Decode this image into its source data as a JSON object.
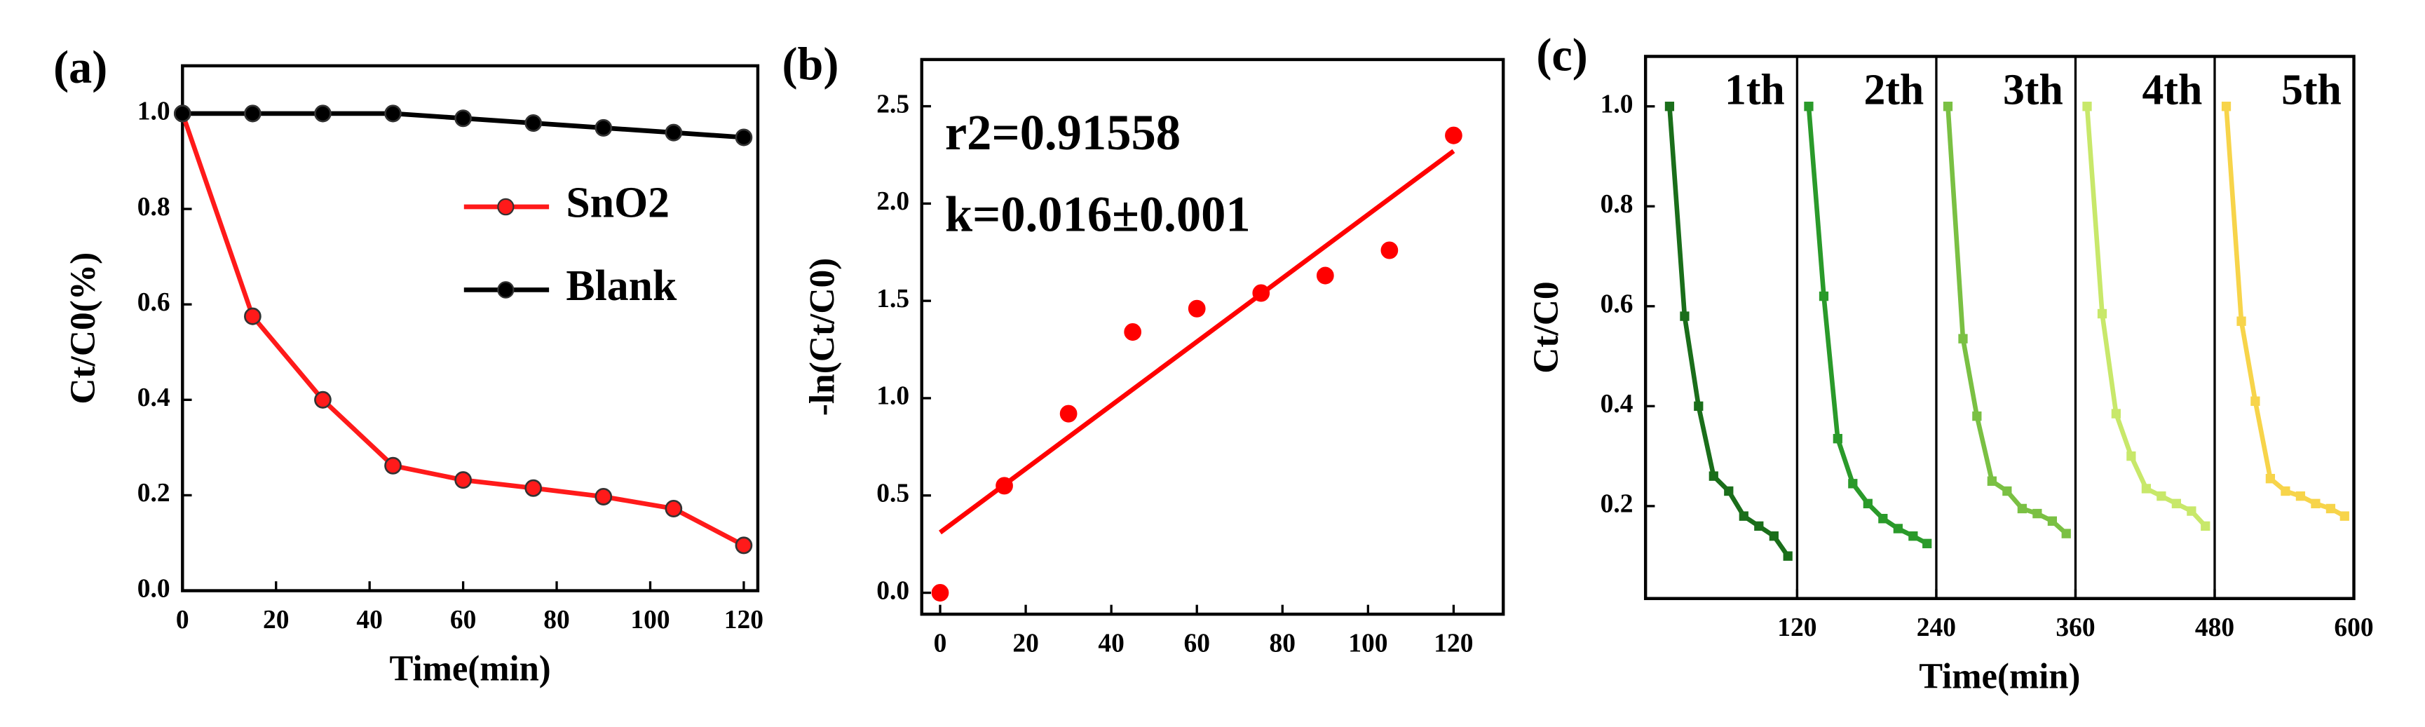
{
  "chart_data": [
    {
      "type": "line",
      "panel": "(a)",
      "xlabel": "Time(min)",
      "ylabel": "Ct/C0(%)",
      "x": [
        0,
        15,
        30,
        45,
        60,
        75,
        90,
        105,
        120
      ],
      "series": [
        {
          "name": "SnO2",
          "color": "#ff1a1a",
          "marker": "circle",
          "line": true,
          "values": [
            1.0,
            0.575,
            0.4,
            0.262,
            0.232,
            0.215,
            0.197,
            0.172,
            0.095
          ]
        },
        {
          "name": "Blank",
          "color": "#000000",
          "marker": "circle",
          "line": true,
          "values": [
            1.0,
            1.0,
            1.0,
            1.0,
            0.99,
            0.98,
            0.97,
            0.96,
            0.95
          ]
        }
      ],
      "xlim": [
        0,
        123
      ],
      "xticks": [
        0,
        20,
        40,
        60,
        80,
        100,
        120
      ],
      "ylim": [
        0,
        1.1
      ],
      "yticks": [
        {
          "value": 0,
          "label": "0.0"
        },
        0.2,
        0.4,
        0.6,
        0.8,
        {
          "value": 1,
          "label": "1.0"
        }
      ],
      "legend": "right"
    },
    {
      "type": "scatter",
      "panel": "(b)",
      "ylabel": "-ln(Ct/C0)",
      "x": [
        0,
        15,
        30,
        45,
        60,
        75,
        90,
        105,
        120
      ],
      "series": [
        {
          "color": "#ff0000",
          "marker": "circle",
          "line": false,
          "values": [
            0,
            0.55,
            0.92,
            1.34,
            1.46,
            1.54,
            1.63,
            1.76,
            2.35
          ]
        },
        {
          "color": "#ff0000",
          "line": true,
          "x": [
            0,
            120
          ],
          "values": [
            0.31,
            2.27
          ]
        }
      ],
      "annotations": [
        "r2=0.91558",
        "k=0.016±0.001"
      ],
      "xlim": [
        -4.3,
        131.6
      ],
      "xticks": [
        0,
        20,
        40,
        60,
        80,
        100,
        120
      ],
      "ylim": [
        -0.11,
        2.74
      ],
      "yticks": [
        {
          "value": 0,
          "label": "0.0"
        },
        0.5,
        {
          "value": 1,
          "label": "1.0"
        },
        1.5,
        {
          "value": 2,
          "label": "2.0"
        },
        2.5
      ]
    },
    {
      "type": "line",
      "panel": "(c)",
      "xlabel": "Time(min)",
      "ylabel": "Ct/C0",
      "series": [
        {
          "color": "#1a6e1a",
          "marker": "square",
          "line": true,
          "x": [
            10,
            23,
            35,
            48,
            61,
            74,
            87,
            100,
            112
          ],
          "values": [
            1.0,
            0.58,
            0.4,
            0.26,
            0.23,
            0.18,
            0.16,
            0.14,
            0.1
          ]
        },
        {
          "color": "#2a9a2a",
          "marker": "square",
          "line": true,
          "x": [
            130,
            143,
            155,
            168,
            181,
            194,
            207,
            220,
            232
          ],
          "values": [
            1.0,
            0.62,
            0.335,
            0.245,
            0.205,
            0.175,
            0.155,
            0.14,
            0.125
          ]
        },
        {
          "color": "#7ac043",
          "marker": "square",
          "line": true,
          "x": [
            250,
            263,
            275,
            288,
            301,
            314,
            327,
            340,
            352
          ],
          "values": [
            1.0,
            0.535,
            0.38,
            0.25,
            0.23,
            0.195,
            0.185,
            0.17,
            0.145
          ]
        },
        {
          "color": "#c8e86a",
          "marker": "square",
          "line": true,
          "x": [
            370,
            383,
            395,
            408,
            421,
            434,
            447,
            460,
            472
          ],
          "values": [
            1.0,
            0.585,
            0.385,
            0.3,
            0.235,
            0.22,
            0.205,
            0.19,
            0.16
          ]
        },
        {
          "color": "#f7d44a",
          "marker": "square",
          "line": true,
          "x": [
            490,
            503,
            515,
            528,
            541,
            554,
            567,
            580,
            592
          ],
          "values": [
            1.0,
            0.57,
            0.41,
            0.255,
            0.23,
            0.22,
            0.205,
            0.195,
            0.18
          ]
        }
      ],
      "dividers": [
        120,
        240,
        360,
        480
      ],
      "annotations": [
        "1th",
        "2th",
        "3th",
        "4th",
        "5th"
      ],
      "xlim": [
        -10.7,
        600
      ],
      "xticks": [
        120,
        240,
        360,
        480,
        600
      ],
      "ylim": [
        0.015,
        1.1
      ],
      "yticks": [
        0.2,
        0.4,
        0.6,
        0.8,
        {
          "value": 1,
          "label": "1.0"
        }
      ]
    }
  ]
}
